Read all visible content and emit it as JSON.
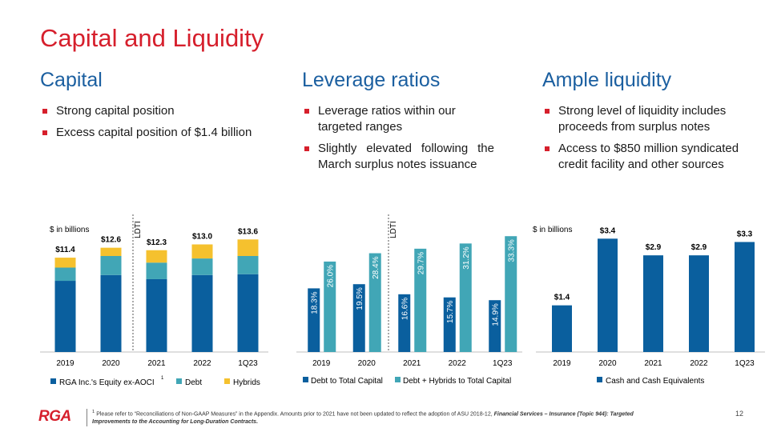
{
  "slide": {
    "title": "Capital and Liquidity",
    "page_number": "12"
  },
  "columns": [
    {
      "heading": "Capital",
      "bullets": [
        "Strong capital position",
        "Excess capital position of $1.4 billion"
      ]
    },
    {
      "heading": "Leverage ratios",
      "bullets": [
        "Leverage ratios within our targeted ranges",
        "Slightly elevated following the March surplus notes issuance"
      ]
    },
    {
      "heading": "Ample liquidity",
      "bullets": [
        "Strong level of liquidity includes proceeds from surplus notes",
        "Access to $850 million syndicated credit facility and other sources"
      ]
    }
  ],
  "colors": {
    "equity": "#0a5f9e",
    "debt": "#41a6b6",
    "hybrids": "#f5c12e",
    "axis": "#bfbfbf",
    "title_red": "#d61f2c",
    "heading_blue": "#1b5fa0"
  },
  "chart_data": [
    {
      "type": "bar",
      "stacked": true,
      "unit_label": "$ in billions",
      "divider_label": "LDTI",
      "categories": [
        "2019",
        "2020",
        "2021",
        "2022",
        "1Q23"
      ],
      "series": [
        {
          "name": "RGA Inc.'s Equity ex-AOCI",
          "values": [
            8.6,
            9.3,
            8.8,
            9.3,
            9.4
          ]
        },
        {
          "name": "Debt",
          "values": [
            1.6,
            2.3,
            2.0,
            2.0,
            2.2
          ]
        },
        {
          "name": "Hybrids",
          "values": [
            1.2,
            1.0,
            1.5,
            1.7,
            2.0
          ]
        }
      ],
      "totals": [
        "$11.4",
        "$12.6",
        "$12.3",
        "$13.0",
        "$13.6"
      ],
      "legend": [
        "RGA Inc.'s Equity ex-AOCI",
        "Debt",
        "Hybrids"
      ],
      "legend_footnote_mark": "1",
      "ylim": [
        0,
        14.5
      ]
    },
    {
      "type": "bar",
      "grouped": true,
      "divider_label": "LDTI",
      "categories": [
        "2019",
        "2020",
        "2021",
        "2022",
        "1Q23"
      ],
      "series": [
        {
          "name": "Debt to Total Capital",
          "values": [
            18.3,
            19.5,
            16.6,
            15.7,
            14.9
          ],
          "labels": [
            "18.3%",
            "19.5%",
            "16.6%",
            "15.7%",
            "14.9%"
          ]
        },
        {
          "name": "Debt + Hybrids to Total Capital",
          "values": [
            26.0,
            28.4,
            29.7,
            31.2,
            33.3
          ],
          "labels": [
            "26.0%",
            "28.4%",
            "29.7%",
            "31.2%",
            "33.3%"
          ]
        }
      ],
      "legend": [
        "Debt to Total Capital",
        "Debt + Hybrids to Total Capital"
      ],
      "ylim": [
        0,
        34.5
      ]
    },
    {
      "type": "bar",
      "unit_label": "$ in billions",
      "categories": [
        "2019",
        "2020",
        "2021",
        "2022",
        "1Q23"
      ],
      "values": [
        1.4,
        3.4,
        2.9,
        2.9,
        3.3
      ],
      "labels": [
        "$1.4",
        "$3.4",
        "$2.9",
        "$2.9",
        "$3.3"
      ],
      "legend": [
        "Cash and Cash Equivalents"
      ],
      "ylim": [
        0,
        3.6
      ]
    }
  ],
  "footer": {
    "logo": "RGA",
    "footnote_mark": "1",
    "footnote_text": "Please refer to “Reconciliations of Non-GAAP Measures” in the Appendix. Amounts prior to 2021 have not been updated to reflect the adoption of ASU 2018-12,",
    "footnote_emphasis": "Financial Services – Insurance (Topic 944): Targeted Improvements to the Accounting for Long-Duration Contracts."
  }
}
